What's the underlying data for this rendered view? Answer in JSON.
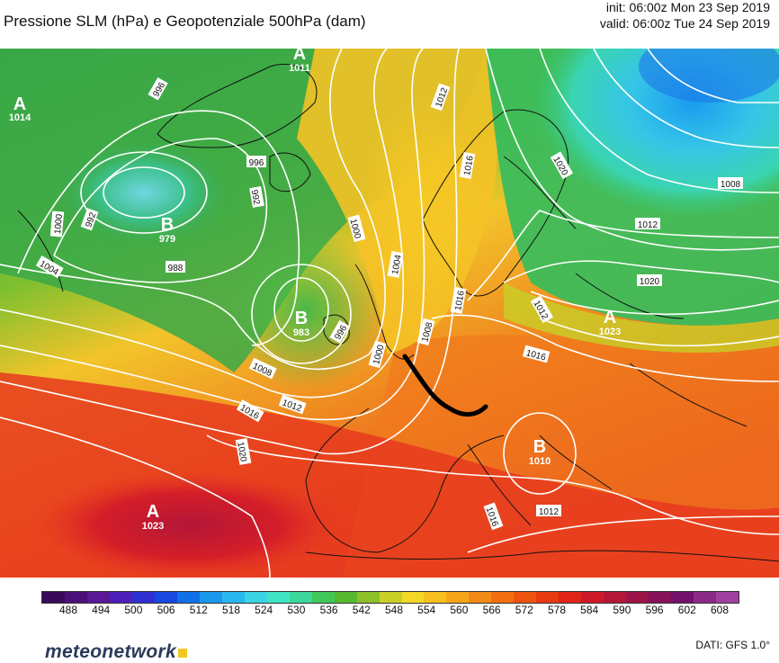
{
  "header": {
    "title": "Pressione SLM (hPa) e Geopotenziale 500hPa (dam)",
    "init": "init: 06:00z Mon 23 Sep 2019",
    "valid": "valid: 06:00z Tue 24 Sep 2019"
  },
  "pressure_centers": [
    {
      "letter": "A",
      "value": "1011"
    },
    {
      "letter": "A",
      "value": "1014"
    },
    {
      "letter": "B",
      "value": "979"
    },
    {
      "letter": "B",
      "value": "983"
    },
    {
      "letter": "A",
      "value": "1023"
    },
    {
      "letter": "B",
      "value": "1010"
    },
    {
      "letter": "A",
      "value": "1023"
    }
  ],
  "isobar_labels": [
    "996",
    "996",
    "992",
    "992",
    "988",
    "1000",
    "1000",
    "1004",
    "1004",
    "996",
    "1000",
    "1008",
    "1008",
    "1012",
    "1012",
    "1016",
    "1020",
    "1012",
    "1012",
    "1016",
    "1008",
    "1012",
    "1020",
    "1016",
    "1020",
    "1016",
    "1012",
    "1016"
  ],
  "colorbar": {
    "ticks": [
      "488",
      "494",
      "500",
      "506",
      "512",
      "518",
      "524",
      "530",
      "536",
      "542",
      "548",
      "554",
      "560",
      "566",
      "572",
      "578",
      "584",
      "590",
      "596",
      "602",
      "608"
    ],
    "colors": [
      "#3a0a5a",
      "#4a1078",
      "#5a1896",
      "#4a20b8",
      "#3030d0",
      "#1848e0",
      "#1070e8",
      "#1a98ee",
      "#28b8ee",
      "#3ad4e4",
      "#40e4c4",
      "#3cd89a",
      "#40c858",
      "#56b830",
      "#8cc028",
      "#c8d028",
      "#f4d826",
      "#f6c01e",
      "#f6a418",
      "#f48a16",
      "#f27012",
      "#ee5410",
      "#e83a10",
      "#e0241a",
      "#cc1a28",
      "#b41638",
      "#9c1448",
      "#86125a",
      "#72106a",
      "#8a2a86",
      "#a040a0"
    ]
  },
  "source": "DATI:  GFS  1.0°",
  "brand": "meteonetwork"
}
